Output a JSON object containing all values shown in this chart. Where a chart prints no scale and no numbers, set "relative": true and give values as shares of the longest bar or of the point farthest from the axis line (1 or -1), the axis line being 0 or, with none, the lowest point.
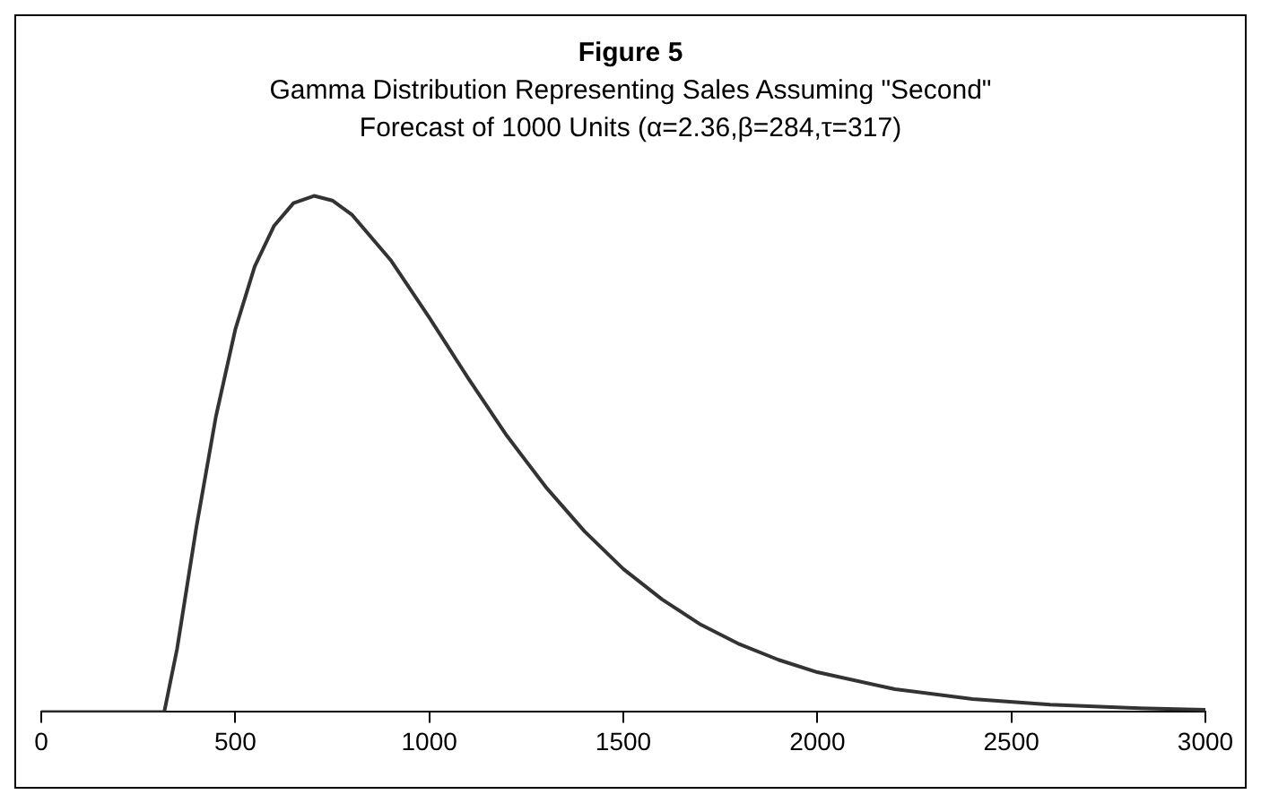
{
  "chart_data": {
    "type": "line",
    "title": "Figure 5",
    "subtitle": "Gamma Distribution Representing Sales Assuming \"Second\" Forecast of 1000 Units (α=2.36,β=284,τ=317)",
    "relative": true,
    "xlim": [
      0,
      3000
    ],
    "xticks": [
      0,
      500,
      1000,
      1500,
      2000,
      2500,
      3000
    ],
    "grid": false,
    "legend": false,
    "marker": "none",
    "line_style": "solid",
    "series": [
      {
        "color": "#333333",
        "x": [
          0,
          317,
          350,
          400,
          450,
          500,
          550,
          600,
          650,
          703,
          750,
          800,
          900,
          1000,
          1100,
          1200,
          1300,
          1400,
          1500,
          1600,
          1700,
          1800,
          1900,
          2000,
          2200,
          2400,
          2600,
          2800,
          3000
        ],
        "values": [
          0,
          0,
          0.122,
          0.359,
          0.572,
          0.741,
          0.863,
          0.942,
          0.986,
          1,
          0.991,
          0.964,
          0.876,
          0.764,
          0.647,
          0.535,
          0.436,
          0.35,
          0.277,
          0.218,
          0.169,
          0.131,
          0.101,
          0.077,
          0.044,
          0.025,
          0.014,
          0.008,
          0.004
        ]
      }
    ]
  }
}
